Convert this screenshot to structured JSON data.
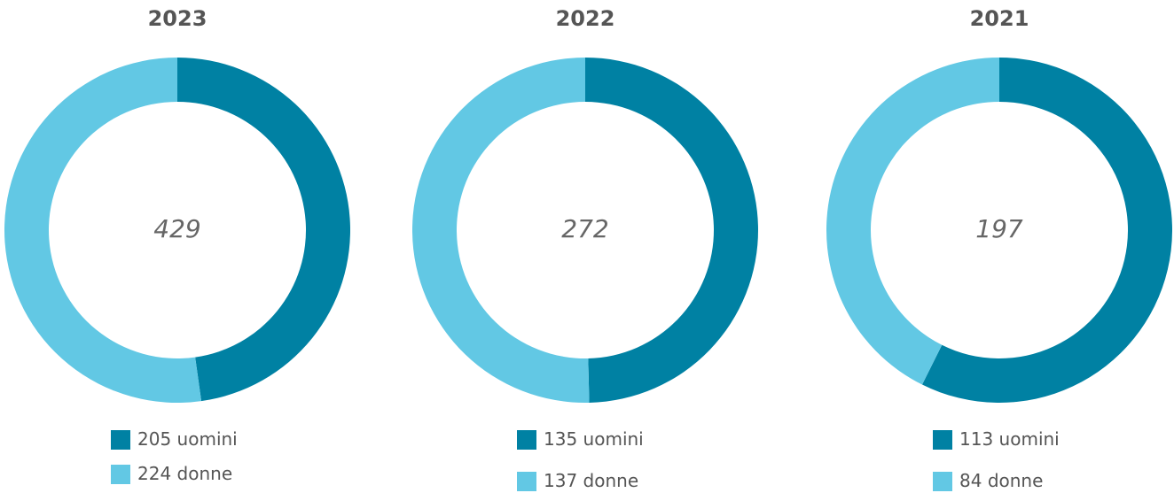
{
  "chart_data": [
    {
      "type": "donut",
      "title": "2023",
      "total": 429,
      "categories": [
        "uomini",
        "donne"
      ],
      "values": [
        205,
        224
      ],
      "colors": [
        "#0081a3",
        "#62c8e4"
      ]
    },
    {
      "type": "donut",
      "title": "2022",
      "total": 272,
      "categories": [
        "uomini",
        "donne"
      ],
      "values": [
        135,
        137
      ],
      "colors": [
        "#0081a3",
        "#62c8e4"
      ]
    },
    {
      "type": "donut",
      "title": "2021",
      "total": 197,
      "categories": [
        "uomini",
        "donne"
      ],
      "values": [
        113,
        84
      ],
      "colors": [
        "#0081a3",
        "#62c8e4"
      ]
    }
  ]
}
